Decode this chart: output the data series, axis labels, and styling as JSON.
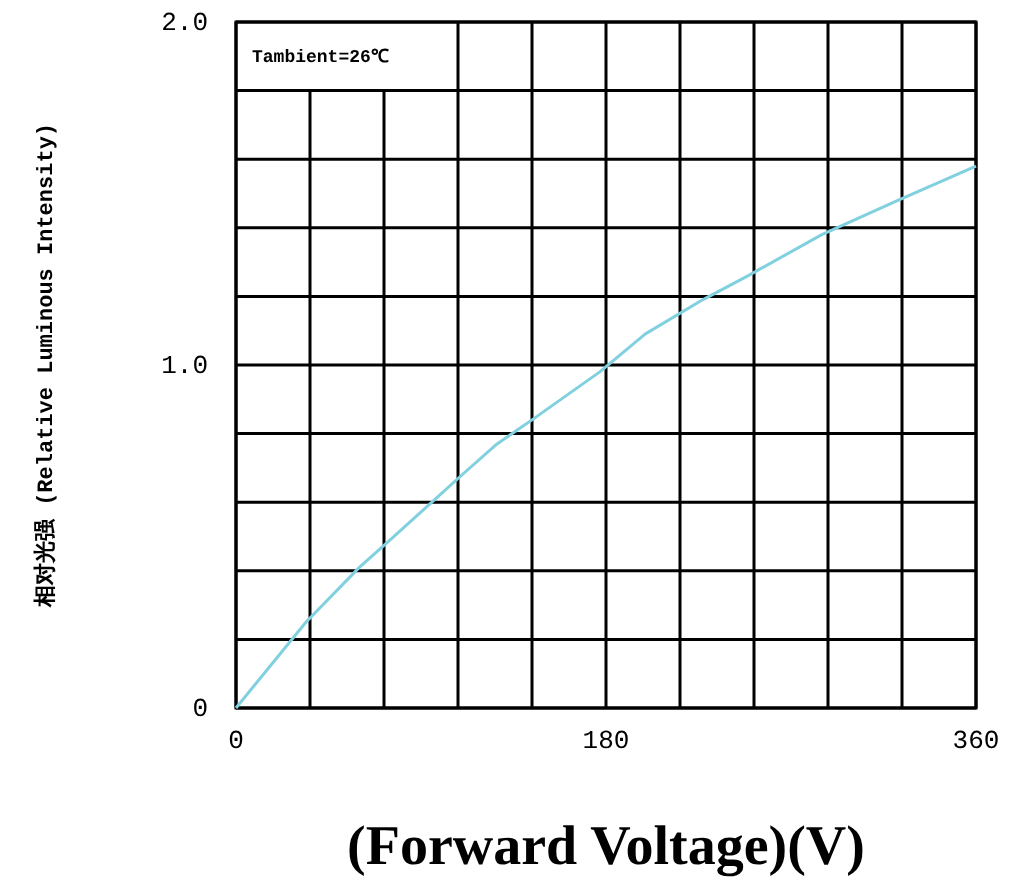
{
  "chart_data": {
    "type": "line",
    "xlabel": "(Forward Voltage)(V)",
    "ylabel": "相对光强 (Relative Luminous Intensity)",
    "annotations": [
      "Tambient=26℃"
    ],
    "xlim": [
      0,
      360
    ],
    "ylim": [
      0,
      2
    ],
    "xticks": [
      0,
      {
        "value": 36,
        "label": null
      },
      {
        "value": 72,
        "label": null
      },
      {
        "value": 108,
        "label": null
      },
      {
        "value": 144,
        "label": null
      },
      180,
      {
        "value": 216,
        "label": null
      },
      {
        "value": 252,
        "label": null
      },
      {
        "value": 288,
        "label": null
      },
      {
        "value": 324,
        "label": null
      },
      360
    ],
    "yticks": [
      {
        "value": 0,
        "label": "0"
      },
      {
        "value": 0.2,
        "label": null
      },
      {
        "value": 0.4,
        "label": null
      },
      {
        "value": 0.6,
        "label": null
      },
      {
        "value": 0.8,
        "label": null
      },
      {
        "value": 1,
        "label": "1.0"
      },
      {
        "value": 1.2,
        "label": null
      },
      {
        "value": 1.4,
        "label": null
      },
      {
        "value": 1.6,
        "label": null
      },
      {
        "value": 1.8,
        "label": null
      },
      {
        "value": 2,
        "label": "2.0"
      }
    ],
    "grid": true,
    "marker": "none",
    "line_style": "solid",
    "series": [
      {
        "color": "#80d0e0",
        "x": [
          0,
          34,
          60,
          75,
          110,
          127,
          144,
          177,
          199,
          227,
          249,
          285,
          322,
          360
        ],
        "values": [
          0,
          0.25,
          0.41,
          0.49,
          0.68,
          0.77,
          0.84,
          0.98,
          1.09,
          1.19,
          1.26,
          1.38,
          1.48,
          1.58
        ]
      }
    ]
  }
}
